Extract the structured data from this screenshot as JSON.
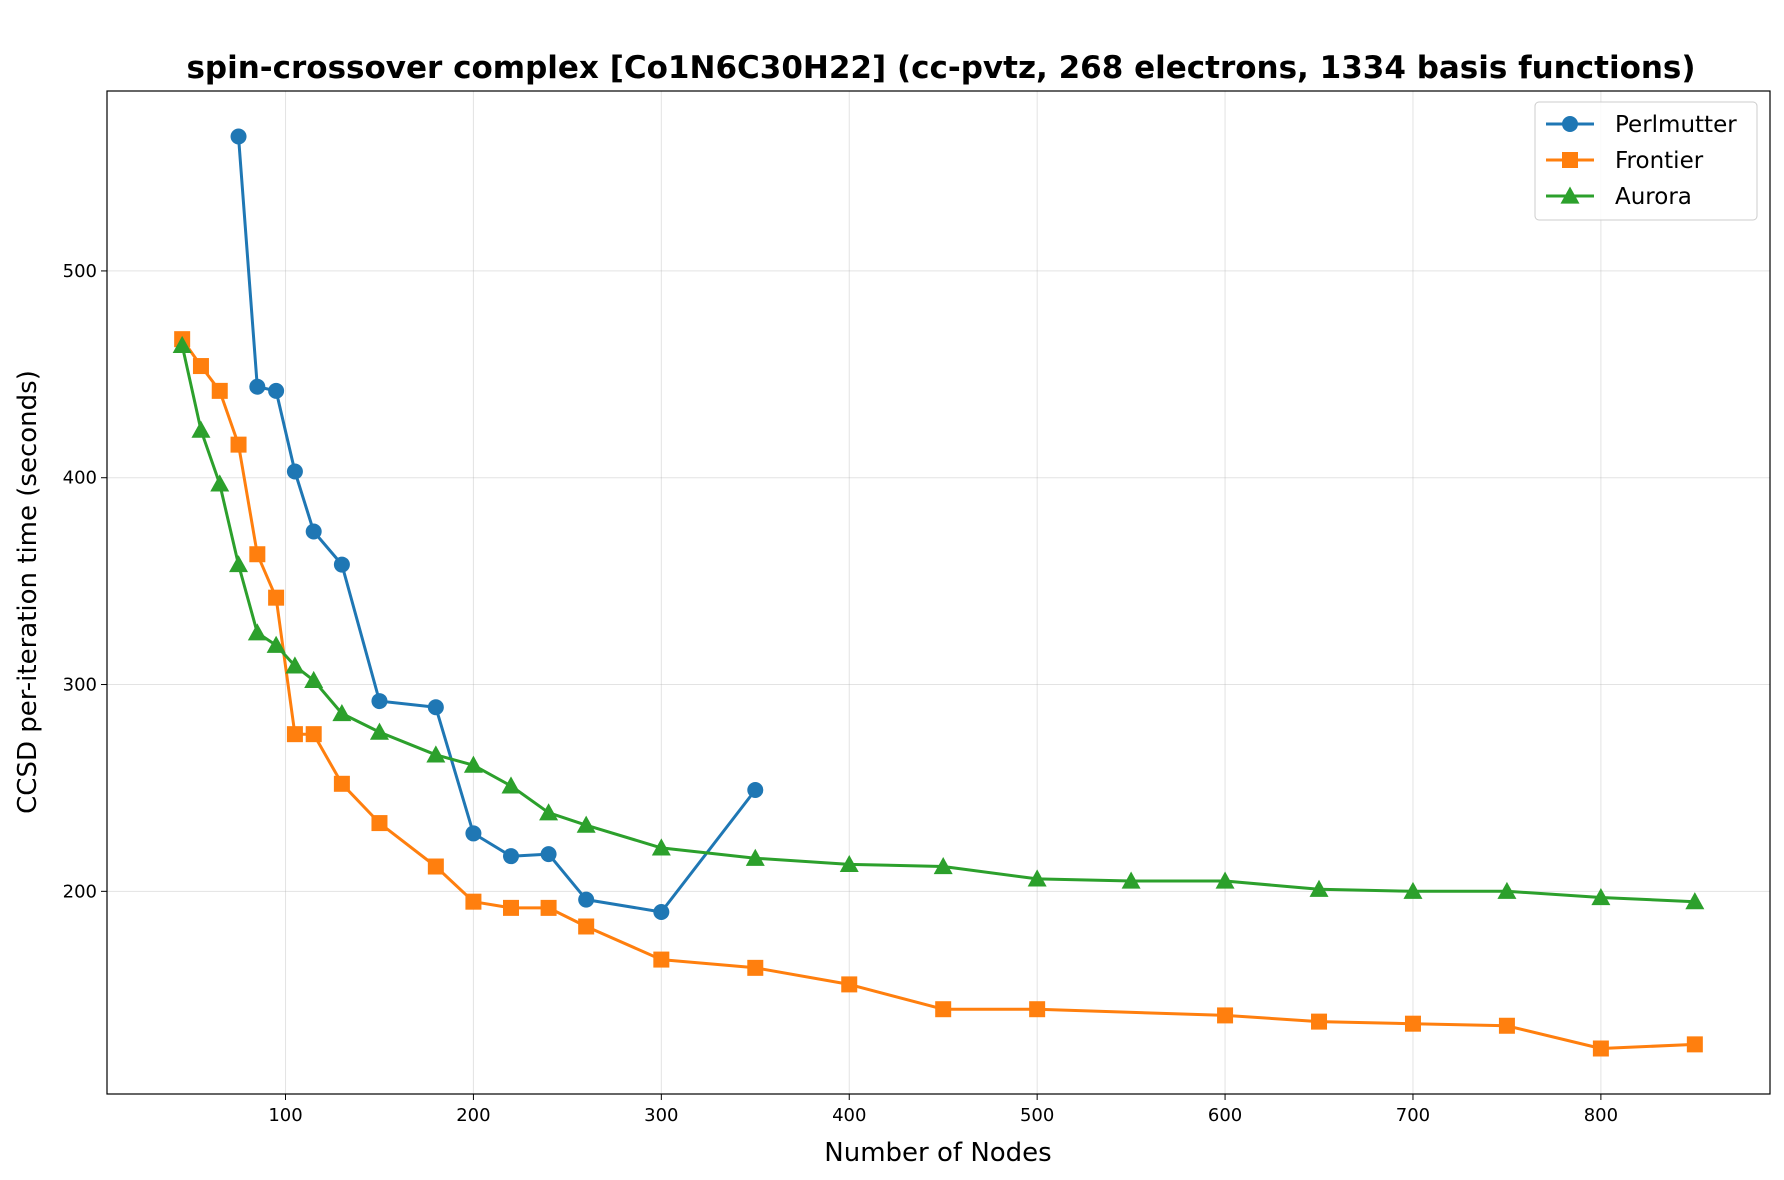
{
  "chart_data": {
    "type": "line",
    "title": "spin-crossover complex [Co1N6C30H22] (cc-pvtz, 268 electrons, 1334 basis functions)",
    "xlabel": "Number of Nodes",
    "ylabel": "CCSD per-iteration time (seconds)",
    "xlim": [
      5,
      890
    ],
    "ylim": [
      102,
      587
    ],
    "xticks": [
      100,
      200,
      300,
      400,
      500,
      600,
      700,
      800
    ],
    "yticks": [
      200,
      300,
      400,
      500
    ],
    "grid": true,
    "legend_position": "top-right",
    "series": [
      {
        "name": "Perlmutter",
        "color": "#1f77b4",
        "marker": "circle",
        "x": [
          75,
          85,
          95,
          105,
          115,
          130,
          150,
          180,
          200,
          220,
          240,
          260,
          300,
          350
        ],
        "y": [
          565,
          444,
          442,
          403,
          374,
          358,
          292,
          289,
          228,
          217,
          218,
          196,
          190,
          249
        ]
      },
      {
        "name": "Frontier",
        "color": "#ff7f0e",
        "marker": "square",
        "x": [
          45,
          55,
          65,
          75,
          85,
          95,
          105,
          115,
          130,
          150,
          180,
          200,
          220,
          240,
          260,
          300,
          350,
          400,
          450,
          500,
          600,
          650,
          700,
          750,
          800,
          850
        ],
        "y": [
          467,
          454,
          442,
          416,
          363,
          342,
          276,
          276,
          252,
          233,
          212,
          195,
          192,
          192,
          183,
          167,
          163,
          155,
          143,
          143,
          140,
          137,
          136,
          135,
          124,
          126
        ]
      },
      {
        "name": "Aurora",
        "color": "#2ca02c",
        "marker": "triangle",
        "x": [
          45,
          55,
          65,
          75,
          85,
          95,
          105,
          115,
          130,
          150,
          180,
          200,
          220,
          240,
          260,
          300,
          350,
          400,
          450,
          500,
          550,
          600,
          650,
          700,
          750,
          800,
          850
        ],
        "y": [
          464,
          423,
          397,
          358,
          325,
          319,
          309,
          302,
          286,
          277,
          266,
          261,
          251,
          238,
          232,
          221,
          216,
          213,
          212,
          206,
          205,
          205,
          201,
          200,
          200,
          197,
          195
        ]
      }
    ]
  }
}
